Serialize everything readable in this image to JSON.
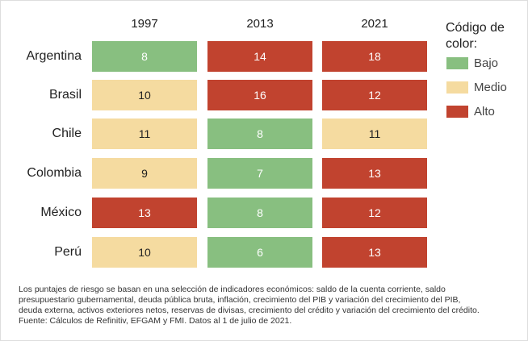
{
  "chart_data": {
    "type": "heatmap",
    "columns": [
      "1997",
      "2013",
      "2021"
    ],
    "categories": [
      "Argentina",
      "Brasil",
      "Chile",
      "Colombia",
      "México",
      "Perú"
    ],
    "values": [
      [
        8,
        14,
        18
      ],
      [
        10,
        16,
        12
      ],
      [
        11,
        8,
        11
      ],
      [
        9,
        7,
        13
      ],
      [
        13,
        8,
        12
      ],
      [
        10,
        6,
        13
      ]
    ],
    "levels": [
      [
        0,
        2,
        2
      ],
      [
        1,
        2,
        2
      ],
      [
        1,
        0,
        1
      ],
      [
        1,
        0,
        2
      ],
      [
        2,
        0,
        2
      ],
      [
        1,
        0,
        2
      ]
    ],
    "legend": {
      "title": "Código de color:",
      "items": [
        {
          "name": "Bajo",
          "color": "#88bf80"
        },
        {
          "name": "Medio",
          "color": "#f5dba0"
        },
        {
          "name": "Alto",
          "color": "#c1432f"
        }
      ]
    },
    "footnote": [
      "Los puntajes de riesgo se basan en una selección de indicadores económicos: saldo de la cuenta corriente, saldo",
      "presupuestario gubernamental, deuda pública bruta, inflación, crecimiento del PIB y variación del crecimiento del PIB,",
      "deuda externa, activos exteriores netos, reservas de divisas, crecimiento del crédito y variación del crecimiento del crédito.",
      "Fuente: Cálculos de Refinitiv, EFGAM y FMI. Datos al 1 de julio de 2021."
    ]
  }
}
